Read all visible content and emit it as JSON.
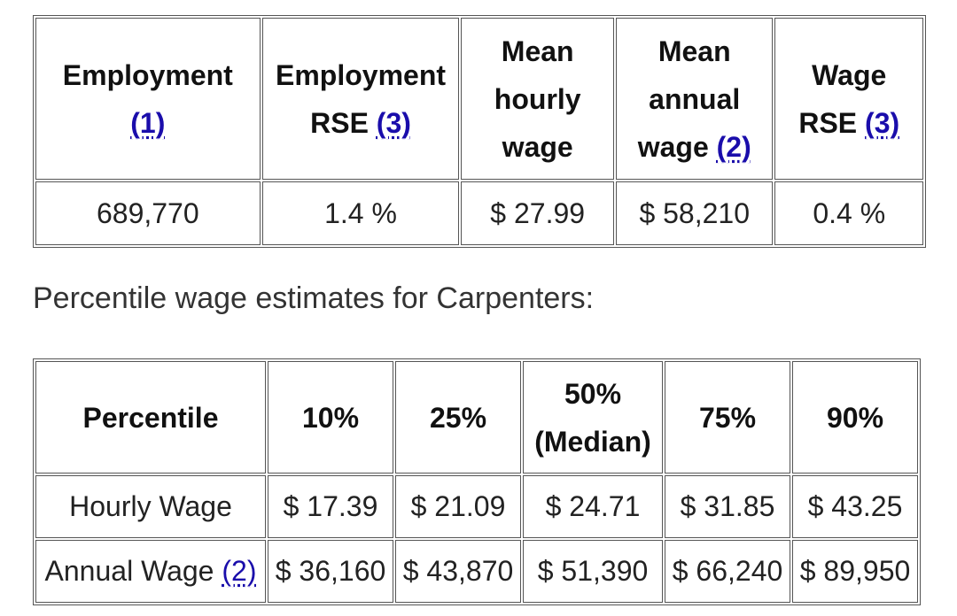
{
  "table1": {
    "headers": [
      {
        "text": "Employment",
        "ref": "(1)"
      },
      {
        "text": "Employment RSE",
        "ref": "(3)"
      },
      {
        "text": "Mean hourly wage",
        "ref": ""
      },
      {
        "text": "Mean annual wage",
        "ref": "(2)"
      },
      {
        "text": "Wage RSE",
        "ref": "(3)"
      }
    ],
    "values": [
      "689,770",
      "1.4 %",
      "$ 27.99",
      "$ 58,210",
      "0.4 %"
    ]
  },
  "caption": "Percentile wage estimates for Carpenters:",
  "table2": {
    "headers": [
      "Percentile",
      "10%",
      "25%",
      "50% (Median)",
      "75%",
      "90%"
    ],
    "rows": [
      {
        "label": "Hourly Wage",
        "ref": "",
        "values": [
          "$ 17.39",
          "$ 21.09",
          "$ 24.71",
          "$ 31.85",
          "$ 43.25"
        ]
      },
      {
        "label": "Annual Wage",
        "ref": "(2)",
        "values": [
          "$ 36,160",
          "$ 43,870",
          "$ 51,390",
          "$ 66,240",
          "$ 89,950"
        ]
      }
    ]
  }
}
